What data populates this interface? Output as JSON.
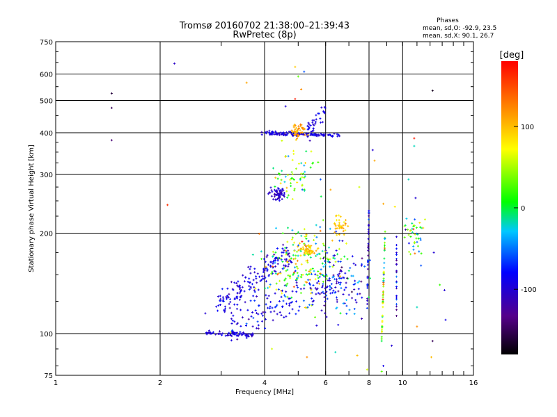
{
  "chart_data": {
    "type": "scatter",
    "title": "Tromsø 20160702 21:38:00–21:39:43",
    "subtitle": "RwPretec (8p)",
    "phases": {
      "heading": "Phases",
      "line_o": "mean, sd,O: -92.9, 23.5",
      "line_x": "mean, sd,X:  90.1, 26.7"
    },
    "xlabel": "Frequency [MHz]",
    "ylabel": "Stationary phase Virtual Height [km]",
    "xscale": "log",
    "yscale": "log",
    "xlim": [
      1,
      16
    ],
    "ylim": [
      75,
      750
    ],
    "x_ticks": [
      1,
      2,
      4,
      6,
      8,
      10,
      16
    ],
    "x_tick_labels": [
      "1",
      "2",
      "4",
      "6",
      "8",
      "10",
      "16"
    ],
    "y_ticks": [
      75,
      100,
      200,
      300,
      400,
      500,
      600,
      750
    ],
    "y_tick_labels": [
      "75",
      "100",
      "200",
      "300",
      "400",
      "500",
      "600",
      "750"
    ],
    "grid": true,
    "colorbar": {
      "label": "[deg]",
      "range": [
        -180,
        180
      ],
      "ticks": [
        100,
        0,
        -100
      ],
      "tick_labels": [
        "100",
        "0",
        "-100"
      ]
    },
    "points": [
      {
        "f": 1.45,
        "h": 525,
        "p": -160
      },
      {
        "f": 1.45,
        "h": 475,
        "p": -150
      },
      {
        "f": 1.45,
        "h": 380,
        "p": -140
      },
      {
        "f": 2.2,
        "h": 645,
        "p": -105
      },
      {
        "f": 2.1,
        "h": 243,
        "p": 160
      },
      {
        "f": 3.55,
        "h": 565,
        "p": 110
      },
      {
        "f": 12.2,
        "h": 535,
        "p": -170
      },
      {
        "f": 4.9,
        "h": 630,
        "p": 95
      },
      {
        "f": 5.2,
        "h": 610,
        "p": -60
      },
      {
        "f": 5.0,
        "h": 590,
        "p": 30
      },
      {
        "f": 4.6,
        "h": 480,
        "p": -100
      },
      {
        "f": 4.9,
        "h": 505,
        "p": 170
      },
      {
        "f": 5.1,
        "h": 540,
        "p": 120
      },
      {
        "f": 10.8,
        "h": 385,
        "p": 170
      },
      {
        "f": 10.8,
        "h": 365,
        "p": -20
      },
      {
        "f": 8.2,
        "h": 355,
        "p": -100
      },
      {
        "f": 8.3,
        "h": 330,
        "p": 110
      },
      {
        "f": 5.8,
        "h": 290,
        "p": -60
      },
      {
        "f": 6.2,
        "h": 270,
        "p": 110
      },
      {
        "f": 7.5,
        "h": 275,
        "p": 60
      },
      {
        "f": 8.8,
        "h": 245,
        "p": 110
      },
      {
        "f": 9.5,
        "h": 240,
        "p": 80
      },
      {
        "f": 10.4,
        "h": 290,
        "p": -20
      },
      {
        "f": 10.9,
        "h": 255,
        "p": -100
      },
      {
        "f": 11.2,
        "h": 215,
        "p": 90
      },
      {
        "f": 11.6,
        "h": 220,
        "p": 60
      },
      {
        "f": 10.2,
        "h": 205,
        "p": -120
      },
      {
        "f": 9.6,
        "h": 195,
        "p": -100
      },
      {
        "f": 11.3,
        "h": 160,
        "p": -60
      },
      {
        "f": 12.3,
        "h": 175,
        "p": -100
      },
      {
        "f": 12.8,
        "h": 140,
        "p": 20
      },
      {
        "f": 13.2,
        "h": 135,
        "p": -100
      },
      {
        "f": 12.2,
        "h": 95,
        "p": -150
      },
      {
        "f": 12.1,
        "h": 85,
        "p": 100
      },
      {
        "f": 13.3,
        "h": 110,
        "p": -90
      },
      {
        "f": 11.0,
        "h": 120,
        "p": -20
      },
      {
        "f": 11.0,
        "h": 105,
        "p": 120
      },
      {
        "f": 9.3,
        "h": 92,
        "p": -100
      },
      {
        "f": 8.8,
        "h": 80,
        "p": -90
      },
      {
        "f": 8.7,
        "h": 77,
        "p": 30
      },
      {
        "f": 7.9,
        "h": 78,
        "p": 60
      },
      {
        "f": 5.3,
        "h": 85,
        "p": 120
      },
      {
        "f": 4.2,
        "h": 90,
        "p": 60
      },
      {
        "f": 6.4,
        "h": 88,
        "p": -20
      },
      {
        "f": 7.4,
        "h": 86,
        "p": 100
      },
      {
        "f": 3.2,
        "h": 101,
        "p": 60
      },
      {
        "f": 2.7,
        "h": 115,
        "p": -100
      },
      {
        "f": 3.05,
        "h": 125,
        "p": -60
      }
    ]
  }
}
